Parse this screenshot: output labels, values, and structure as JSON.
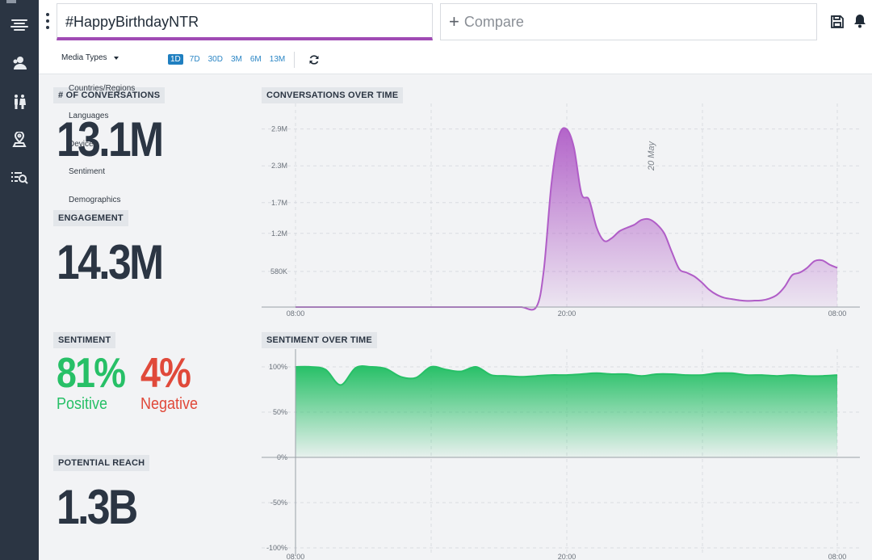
{
  "search": {
    "query": "#HappyBirthdayNTR"
  },
  "compare": {
    "label": "Compare"
  },
  "toolbar": {
    "media_types": "Media Types",
    "ranges": [
      "1D",
      "7D",
      "30D",
      "3M",
      "6M",
      "13M"
    ],
    "active_range": "1D"
  },
  "dropdown": {
    "items": [
      "Countries/Regions",
      "Languages",
      "Devices",
      "Sentiment",
      "Demographics"
    ]
  },
  "metrics": {
    "conversations": {
      "label": "# OF CONVERSATIONS",
      "value": "13.1M"
    },
    "engagement": {
      "label": "ENGAGEMENT",
      "value": "14.3M"
    },
    "sentiment": {
      "label": "SENTIMENT",
      "positive_value": "81%",
      "positive_label": "Positive",
      "negative_value": "4%",
      "negative_label": "Negative"
    },
    "reach": {
      "label": "POTENTIAL REACH",
      "value": "1.3B"
    }
  },
  "colors": {
    "accent": "#a04bb4",
    "positive": "#27c067",
    "negative": "#e0493a",
    "sidebar": "#2b3543"
  },
  "chart_data": [
    {
      "type": "area",
      "title": "CONVERSATIONS OVER TIME",
      "x_ticks": [
        "08:00",
        "20:00",
        "08:00"
      ],
      "y_ticks": [
        "580K",
        "1.2M",
        "1.7M",
        "2.3M",
        "2.9M"
      ],
      "y_tick_values": [
        580000,
        1200000,
        1700000,
        2300000,
        2900000
      ],
      "annotation": "20 May",
      "ylim": [
        0,
        3000000
      ],
      "series": [
        {
          "x": [
            0,
            1,
            2,
            3,
            4,
            5,
            6,
            7,
            8,
            9,
            10,
            11,
            12,
            13,
            14,
            15,
            16,
            16.5,
            17,
            17.5,
            18,
            18.5,
            19,
            19.5,
            20,
            20.5,
            21,
            21.5,
            22,
            22.5,
            23,
            23.5,
            24,
            24.5,
            25,
            25.5,
            26,
            26.5,
            27,
            27.5,
            28,
            28.5,
            29,
            29.5,
            30,
            30.5,
            31,
            31.5,
            32,
            32.5,
            33,
            33.5,
            34,
            34.5,
            35,
            35.5,
            36
          ],
          "values": [
            0,
            0,
            0,
            0,
            0,
            0,
            0,
            0,
            0,
            0,
            0,
            0,
            0,
            0,
            0,
            0,
            0,
            600000,
            2000000,
            2780000,
            2900000,
            2600000,
            1850000,
            1750000,
            1300000,
            1080000,
            1120000,
            1230000,
            1290000,
            1340000,
            1420000,
            1430000,
            1350000,
            1200000,
            900000,
            620000,
            560000,
            500000,
            400000,
            280000,
            200000,
            150000,
            130000,
            110000,
            100000,
            105000,
            110000,
            140000,
            200000,
            330000,
            520000,
            560000,
            640000,
            750000,
            760000,
            690000,
            640000
          ]
        }
      ]
    },
    {
      "type": "area",
      "title": "SENTIMENT OVER TIME",
      "x_ticks": [
        "08:00",
        "20:00",
        "08:00"
      ],
      "y_ticks": [
        "100%",
        "50%",
        "0%",
        "-50%",
        "-100%"
      ],
      "y_tick_values": [
        100,
        50,
        0,
        -50,
        -100
      ],
      "ylim": [
        -100,
        100
      ],
      "series": [
        {
          "x": [
            0,
            1,
            2,
            3,
            4,
            5,
            6,
            7,
            8,
            9,
            10,
            11,
            12,
            13,
            14,
            15,
            16,
            17,
            18,
            19,
            20,
            21,
            22,
            23,
            24,
            25,
            26,
            27,
            28,
            29,
            30,
            31,
            32,
            33,
            34,
            35,
            36
          ],
          "values": [
            100,
            100,
            97,
            80,
            99,
            100,
            98,
            89,
            88,
            100,
            97,
            95,
            100,
            91,
            90,
            89,
            90,
            91,
            91,
            92,
            93,
            92,
            92,
            90,
            92,
            92,
            91,
            91,
            93,
            93,
            91,
            91,
            90,
            91,
            90,
            90,
            91
          ]
        }
      ]
    }
  ]
}
